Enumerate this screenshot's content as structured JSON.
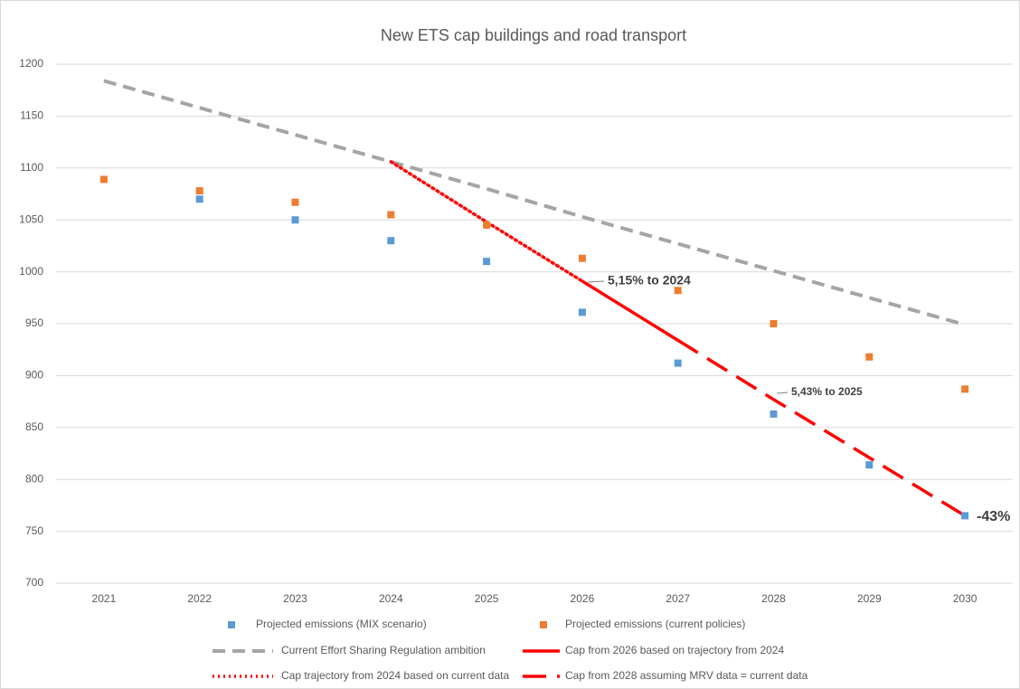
{
  "chart_data": {
    "type": "line",
    "title": "New ETS cap buildings and road transport",
    "categories": [
      "2021",
      "2022",
      "2023",
      "2024",
      "2025",
      "2026",
      "2027",
      "2028",
      "2029",
      "2030"
    ],
    "ylim": [
      700,
      1200
    ],
    "yticks": [
      700,
      750,
      800,
      850,
      900,
      950,
      1000,
      1050,
      1100,
      1150,
      1200
    ],
    "grid": true,
    "series": [
      {
        "name": "Projected emissions (MIX scenario)",
        "color": "#5b9bd5",
        "style": "marker",
        "values": [
          null,
          1070,
          1050,
          1030,
          1010,
          961,
          912,
          863,
          814,
          765
        ]
      },
      {
        "name": "Projected emissions (current policies)",
        "color": "#ed7d31",
        "style": "marker",
        "values": [
          1089,
          1078,
          1067,
          1055,
          1045,
          1013,
          982,
          950,
          918,
          887
        ]
      },
      {
        "name": "Current Effort Sharing Regulation ambition",
        "color": "#a5a5a5",
        "style": "dashed",
        "values": [
          1184,
          1158,
          1132,
          1106,
          1080,
          1053,
          1027,
          1001,
          975,
          949
        ]
      },
      {
        "name": "Cap from 2026 based on trajectory from 2024",
        "color": "#ff0000",
        "style": "solid",
        "values": [
          null,
          null,
          null,
          null,
          null,
          991,
          934,
          null,
          null,
          null
        ]
      },
      {
        "name": "Cap trajectory from 2024 based on current data",
        "color": "#ff0000",
        "style": "dotted",
        "values": [
          null,
          null,
          null,
          1106,
          1048,
          991,
          null,
          null,
          null,
          null
        ]
      },
      {
        "name": "Cap from 2028 assuming MRV data = current data",
        "color": "#ff0000",
        "style": "longdash",
        "values": [
          null,
          null,
          null,
          null,
          null,
          null,
          934,
          877,
          821,
          765
        ]
      }
    ],
    "annotations": [
      "5,15% to 2024",
      "5,43% to 2025",
      "-43%"
    ]
  }
}
